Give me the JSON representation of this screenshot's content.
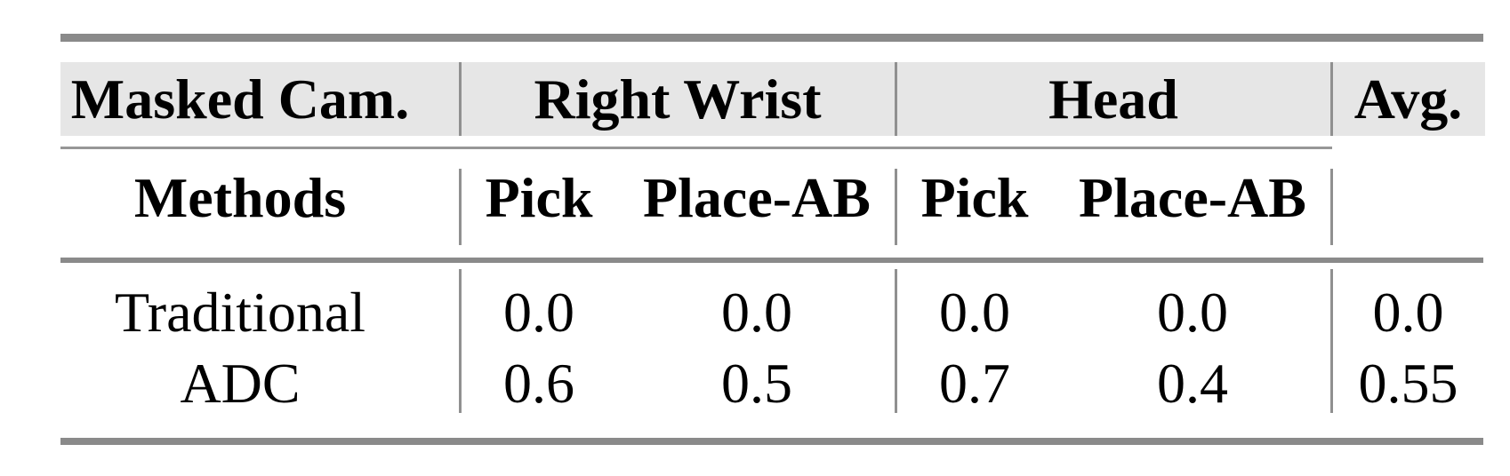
{
  "table": {
    "top_header": {
      "masked_cam": "Masked Cam.",
      "right_wrist": "Right Wrist",
      "head": "Head",
      "avg": "Avg."
    },
    "sub_header": {
      "methods": "Methods",
      "rw_pick": "Pick",
      "rw_place_ab": "Place-AB",
      "head_pick": "Pick",
      "head_place_ab": "Place-AB"
    },
    "rows": [
      {
        "method": "Traditional",
        "rw_pick": "0.0",
        "rw_place_ab": "0.0",
        "head_pick": "0.0",
        "head_place_ab": "0.0",
        "avg": "0.0"
      },
      {
        "method": "ADC",
        "rw_pick": "0.6",
        "rw_place_ab": "0.5",
        "head_pick": "0.7",
        "head_place_ab": "0.4",
        "avg": "0.55"
      }
    ]
  },
  "colors": {
    "background": "#ffffff",
    "header_band": "#e6e6e6",
    "rule_heavy": "#8a8a8a",
    "rule_light": "#979797",
    "divider": "#909090",
    "text": "#000000"
  }
}
